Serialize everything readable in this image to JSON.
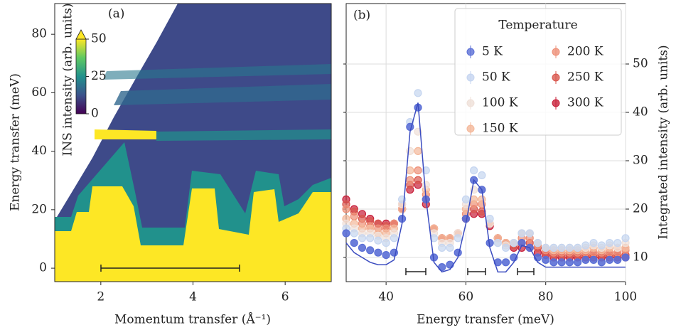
{
  "chart_data": [
    {
      "type": "heatmap",
      "panel_label": "(a)",
      "xlabel": "Momentum transfer (Å⁻¹)",
      "ylabel": "Energy transfer (meV)",
      "xlim": [
        1,
        7
      ],
      "ylim": [
        -4.6,
        90.5
      ],
      "xticks": [
        2,
        4,
        6
      ],
      "yticks": [
        0,
        20,
        40,
        60,
        80
      ],
      "colorbar": {
        "label": "INS intensity (arb. units)",
        "clim": [
          0,
          50
        ],
        "ticks": [
          0,
          25,
          50
        ]
      }
    },
    {
      "type": "scatter",
      "panel_label": "(b)",
      "xlabel": "Energy transfer (meV)",
      "y2label": "Integrated intensity (arb. units)",
      "xlim": [
        30,
        100
      ],
      "y2lim": [
        5,
        62.5
      ],
      "xticks": [
        40,
        60,
        80,
        100
      ],
      "y2ticks": [
        10,
        20,
        30,
        40,
        50
      ],
      "grid": true,
      "legend": {
        "title": "Temperature",
        "corner": "upper right"
      },
      "x": [
        30,
        32,
        34,
        36,
        38,
        40,
        42,
        44,
        46,
        48,
        50,
        52,
        54,
        56,
        58,
        60,
        62,
        64,
        66,
        68,
        70,
        72,
        74,
        76,
        78,
        80,
        82,
        84,
        86,
        88,
        90,
        92,
        94,
        96,
        98,
        100
      ],
      "series": [
        {
          "name": "5 K",
          "color": "#5b6fd6",
          "axis": "y2",
          "values": [
            15,
            13,
            12,
            11.5,
            11,
            10.5,
            11,
            18,
            37,
            41,
            22,
            10,
            8,
            8.5,
            11,
            18,
            26,
            24,
            13,
            9,
            9,
            10,
            13,
            12,
            10,
            9.5,
            9,
            9,
            9,
            9,
            9.5,
            9.5,
            9,
            9.5,
            9.5,
            10
          ]
        },
        {
          "name": "50 K",
          "color": "#c5d5f0",
          "axis": "y2",
          "values": [
            16,
            15,
            14,
            14,
            13.5,
            13,
            14,
            22,
            38,
            44,
            28,
            14,
            12,
            12,
            14,
            22,
            28,
            27,
            18,
            13,
            12,
            13,
            15,
            15,
            13,
            12,
            12,
            12,
            12,
            12,
            12.5,
            13,
            12.5,
            13,
            13,
            14
          ]
        },
        {
          "name": "100 K",
          "color": "#efe0d8",
          "axis": "y2",
          "values": [
            17,
            16,
            15,
            15,
            14.5,
            14,
            15,
            21,
            32,
            36,
            25,
            15,
            13,
            13,
            15,
            21,
            24,
            24,
            17,
            13,
            12.5,
            13,
            15,
            15,
            13,
            12,
            12,
            12,
            12,
            12,
            12,
            12.5,
            12,
            12.5,
            12,
            13
          ]
        },
        {
          "name": "150 K",
          "color": "#f4b89a",
          "axis": "y2",
          "values": [
            18,
            17,
            16,
            16,
            15,
            15,
            16,
            20,
            28,
            32,
            24,
            16,
            14,
            14,
            15,
            20,
            22,
            22,
            17,
            14,
            13,
            13,
            15,
            15,
            13,
            12,
            11.5,
            11.5,
            11.5,
            11.5,
            11.5,
            12,
            11.5,
            12,
            12,
            12
          ]
        },
        {
          "name": "200 K",
          "color": "#ee9078",
          "axis": "y2",
          "values": [
            20,
            18.5,
            17,
            16.5,
            16,
            16,
            17,
            21,
            26,
            28,
            23,
            16,
            14,
            14,
            15,
            19,
            21,
            21,
            17,
            14,
            13,
            13,
            14,
            14,
            12.5,
            11.5,
            11,
            11,
            11,
            11,
            11,
            11,
            11,
            11,
            11,
            11.5
          ]
        },
        {
          "name": "250 K",
          "color": "#d9574e",
          "axis": "y2",
          "values": [
            21,
            19.5,
            18,
            17.5,
            17,
            16.5,
            17,
            20,
            25,
            26,
            22,
            16,
            14,
            14,
            15,
            18,
            20,
            19.5,
            17,
            14,
            13,
            12.5,
            13,
            13,
            12,
            11,
            10.5,
            10.5,
            10.5,
            10.5,
            10.5,
            10.5,
            10.5,
            10.5,
            10.5,
            10.5
          ]
        },
        {
          "name": "300 K",
          "color": "#c8203a",
          "axis": "y2",
          "values": [
            22,
            20,
            19,
            18,
            17,
            17,
            17,
            20,
            24,
            25,
            21,
            16,
            14,
            14,
            15,
            18,
            19,
            19,
            16.5,
            14,
            13,
            12,
            12,
            12,
            11,
            10.5,
            10,
            10,
            10,
            10,
            10,
            10,
            10,
            10,
            10,
            10
          ]
        }
      ],
      "fit_line": {
        "color": "#3b4cc0",
        "values": [
          13,
          11,
          10,
          9,
          8.5,
          8.5,
          9.5,
          17,
          36,
          42,
          22,
          9,
          7,
          7.5,
          10,
          17,
          26,
          24,
          12,
          7,
          7,
          9,
          12.5,
          12,
          9,
          8,
          8,
          8,
          8,
          8,
          8,
          8,
          8,
          8,
          8,
          8
        ]
      }
    }
  ]
}
